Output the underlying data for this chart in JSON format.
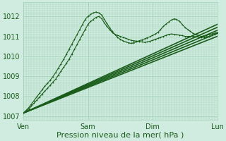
{
  "background_color": "#d0ece0",
  "grid_color": "#a8d4bc",
  "line_color": "#1a5c1a",
  "ylim": [
    1006.8,
    1012.7
  ],
  "xlim": [
    0,
    144
  ],
  "yticks": [
    1007,
    1008,
    1009,
    1010,
    1011,
    1012
  ],
  "day_labels": [
    "Ven",
    "Sam",
    "Dim",
    "Lun"
  ],
  "day_positions": [
    0,
    48,
    96,
    144
  ],
  "xlabel": "Pression niveau de la mer( hPa )",
  "xlabel_fontsize": 8,
  "tick_fontsize": 7,
  "series": [
    {
      "x": [
        0,
        144
      ],
      "y": [
        1007.15,
        1011.0
      ],
      "lw": 1.2,
      "marker": false
    },
    {
      "x": [
        0,
        144
      ],
      "y": [
        1007.15,
        1011.15
      ],
      "lw": 1.2,
      "marker": false
    },
    {
      "x": [
        0,
        144
      ],
      "y": [
        1007.15,
        1011.3
      ],
      "lw": 1.2,
      "marker": false
    },
    {
      "x": [
        0,
        144
      ],
      "y": [
        1007.15,
        1011.45
      ],
      "lw": 1.2,
      "marker": false
    },
    {
      "x": [
        0,
        144
      ],
      "y": [
        1007.15,
        1011.6
      ],
      "lw": 1.2,
      "marker": false
    },
    {
      "x": [
        0,
        2,
        4,
        6,
        8,
        10,
        12,
        14,
        16,
        18,
        20,
        22,
        24,
        26,
        28,
        30,
        32,
        34,
        36,
        38,
        40,
        42,
        44,
        46,
        48,
        50,
        52,
        54,
        56,
        58,
        60,
        62,
        64,
        66,
        68,
        70,
        72,
        74,
        76,
        78,
        80,
        82,
        84,
        86,
        88,
        90,
        92,
        94,
        96,
        98,
        100,
        102,
        104,
        106,
        108,
        110,
        112,
        114,
        116,
        118,
        120,
        122,
        124,
        126,
        128,
        130,
        132,
        134,
        136,
        138,
        140,
        142,
        144
      ],
      "y": [
        1007.15,
        1007.25,
        1007.35,
        1007.5,
        1007.65,
        1007.8,
        1007.95,
        1008.1,
        1008.25,
        1008.4,
        1008.55,
        1008.7,
        1008.85,
        1009.05,
        1009.25,
        1009.45,
        1009.65,
        1009.85,
        1010.1,
        1010.35,
        1010.6,
        1010.85,
        1011.1,
        1011.35,
        1011.6,
        1011.75,
        1011.85,
        1011.95,
        1012.0,
        1011.9,
        1011.7,
        1011.5,
        1011.35,
        1011.2,
        1011.1,
        1011.05,
        1011.0,
        1010.95,
        1010.9,
        1010.85,
        1010.8,
        1010.78,
        1010.76,
        1010.74,
        1010.72,
        1010.7,
        1010.72,
        1010.75,
        1010.8,
        1010.85,
        1010.9,
        1010.95,
        1011.0,
        1011.05,
        1011.1,
        1011.12,
        1011.1,
        1011.08,
        1011.06,
        1011.04,
        1011.0,
        1011.0,
        1011.0,
        1011.0,
        1010.98,
        1010.96,
        1010.94,
        1010.96,
        1010.98,
        1011.0,
        1011.05,
        1011.1,
        1011.15
      ],
      "lw": 0.8,
      "marker": true
    },
    {
      "x": [
        0,
        2,
        4,
        6,
        8,
        10,
        12,
        14,
        16,
        18,
        20,
        22,
        24,
        26,
        28,
        30,
        32,
        34,
        36,
        38,
        40,
        42,
        44,
        46,
        48,
        50,
        52,
        54,
        56,
        58,
        60,
        62,
        64,
        66,
        68,
        70,
        72,
        74,
        76,
        78,
        80,
        82,
        84,
        86,
        88,
        90,
        92,
        94,
        96,
        98,
        100,
        102,
        104,
        106,
        108,
        110,
        112,
        114,
        116,
        118,
        120,
        122,
        124,
        126,
        128,
        130,
        132,
        134,
        136,
        138,
        140,
        142,
        144
      ],
      "y": [
        1007.15,
        1007.28,
        1007.42,
        1007.6,
        1007.78,
        1007.96,
        1008.14,
        1008.32,
        1008.5,
        1008.65,
        1008.8,
        1008.98,
        1009.18,
        1009.4,
        1009.62,
        1009.85,
        1010.1,
        1010.35,
        1010.6,
        1010.85,
        1011.1,
        1011.35,
        1011.6,
        1011.85,
        1012.0,
        1012.1,
        1012.18,
        1012.22,
        1012.18,
        1012.08,
        1011.88,
        1011.65,
        1011.45,
        1011.25,
        1011.1,
        1010.95,
        1010.85,
        1010.78,
        1010.72,
        1010.68,
        1010.65,
        1010.68,
        1010.72,
        1010.78,
        1010.82,
        1010.87,
        1010.93,
        1010.98,
        1011.05,
        1011.12,
        1011.2,
        1011.35,
        1011.5,
        1011.62,
        1011.72,
        1011.82,
        1011.88,
        1011.85,
        1011.75,
        1011.6,
        1011.45,
        1011.35,
        1011.25,
        1011.15,
        1011.1,
        1011.05,
        1011.0,
        1011.02,
        1011.05,
        1011.08,
        1011.12,
        1011.16,
        1011.2
      ],
      "lw": 0.8,
      "marker": true
    }
  ]
}
